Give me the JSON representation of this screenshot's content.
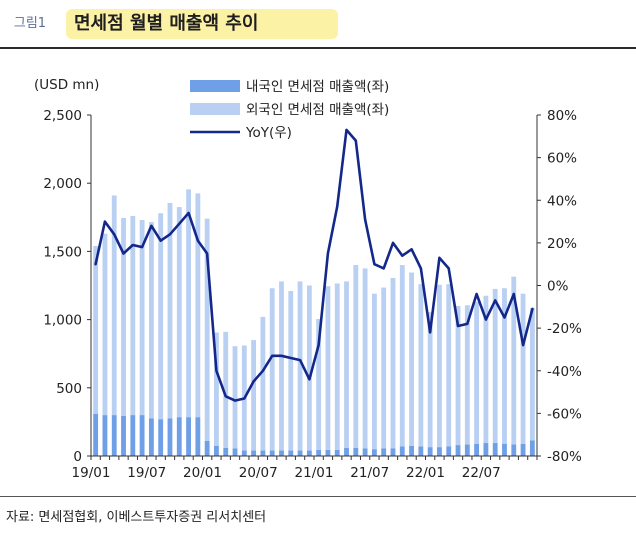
{
  "header": {
    "figure_tag": "그림1",
    "title": "면세점 월별 매출액 추이"
  },
  "footer": {
    "source": "자료: 면세점협회, 이베스트투자증권 리서치센터"
  },
  "colors": {
    "domestic": "#6f9fe6",
    "foreign": "#b9d0f3",
    "yoy": "#13288a"
  },
  "chart_data": {
    "type": "bar",
    "units_label": "(USD mn)",
    "x_ticks": [
      "19/01",
      "19/07",
      "20/01",
      "20/07",
      "21/01",
      "21/07",
      "22/01",
      "22/07"
    ],
    "months": [
      "19/01",
      "19/02",
      "19/03",
      "19/04",
      "19/05",
      "19/06",
      "19/07",
      "19/08",
      "19/09",
      "19/10",
      "19/11",
      "19/12",
      "20/01",
      "20/02",
      "20/03",
      "20/04",
      "20/05",
      "20/06",
      "20/07",
      "20/08",
      "20/09",
      "20/10",
      "20/11",
      "20/12",
      "21/01",
      "21/02",
      "21/03",
      "21/04",
      "21/05",
      "21/06",
      "21/07",
      "21/08",
      "21/09",
      "21/10",
      "21/11",
      "21/12",
      "22/01",
      "22/02",
      "22/03",
      "22/04",
      "22/05",
      "22/06",
      "22/07",
      "22/08",
      "22/09",
      "22/10",
      "22/11",
      "22/12"
    ],
    "y_left": {
      "min": 0,
      "max": 2500,
      "ticks": [
        "0",
        "500",
        "1,000",
        "1,500",
        "2,000",
        "2,500"
      ]
    },
    "y_right": {
      "min": -80,
      "max": 80,
      "ticks": [
        "-80%",
        "-60%",
        "-40%",
        "-20%",
        "0%",
        "20%",
        "40%",
        "60%",
        "80%"
      ]
    },
    "stacked": true,
    "series": [
      {
        "name": "내국인 면세점 매출액(좌)",
        "axis": "left",
        "values": [
          310,
          300,
          300,
          295,
          300,
          300,
          275,
          270,
          275,
          285,
          285,
          285,
          110,
          75,
          60,
          55,
          40,
          40,
          40,
          40,
          40,
          40,
          40,
          40,
          45,
          45,
          45,
          60,
          60,
          55,
          50,
          55,
          55,
          70,
          75,
          70,
          65,
          65,
          70,
          80,
          85,
          90,
          95,
          95,
          90,
          85,
          90,
          115
        ]
      },
      {
        "name": "외국인 면세점 매출액(좌)",
        "axis": "left",
        "values": [
          1230,
          1330,
          1610,
          1450,
          1460,
          1430,
          1440,
          1510,
          1580,
          1540,
          1670,
          1640,
          1630,
          830,
          850,
          750,
          770,
          810,
          980,
          1190,
          1240,
          1170,
          1240,
          1210,
          960,
          1200,
          1220,
          1220,
          1340,
          1320,
          1140,
          1180,
          1250,
          1330,
          1270,
          1190,
          990,
          1190,
          1190,
          1020,
          1020,
          1040,
          1080,
          1130,
          1140,
          1230,
          1100,
          970
        ]
      },
      {
        "name": "YoY(우)",
        "axis": "right",
        "kind": "line",
        "values": [
          10,
          30,
          24,
          15,
          19,
          18,
          28,
          21,
          24,
          29,
          34,
          21,
          15,
          -40,
          -52,
          -54,
          -53,
          -45,
          -40,
          -33,
          -33,
          -34,
          -35,
          -44,
          -28,
          15,
          37,
          73,
          68,
          31,
          10,
          8,
          20,
          14,
          17,
          8,
          -22,
          13,
          8,
          -19,
          -18,
          -4,
          -16,
          -7,
          -15,
          -4,
          -28,
          -11
        ]
      }
    ],
    "legend_position": "top-center",
    "grid": false
  }
}
